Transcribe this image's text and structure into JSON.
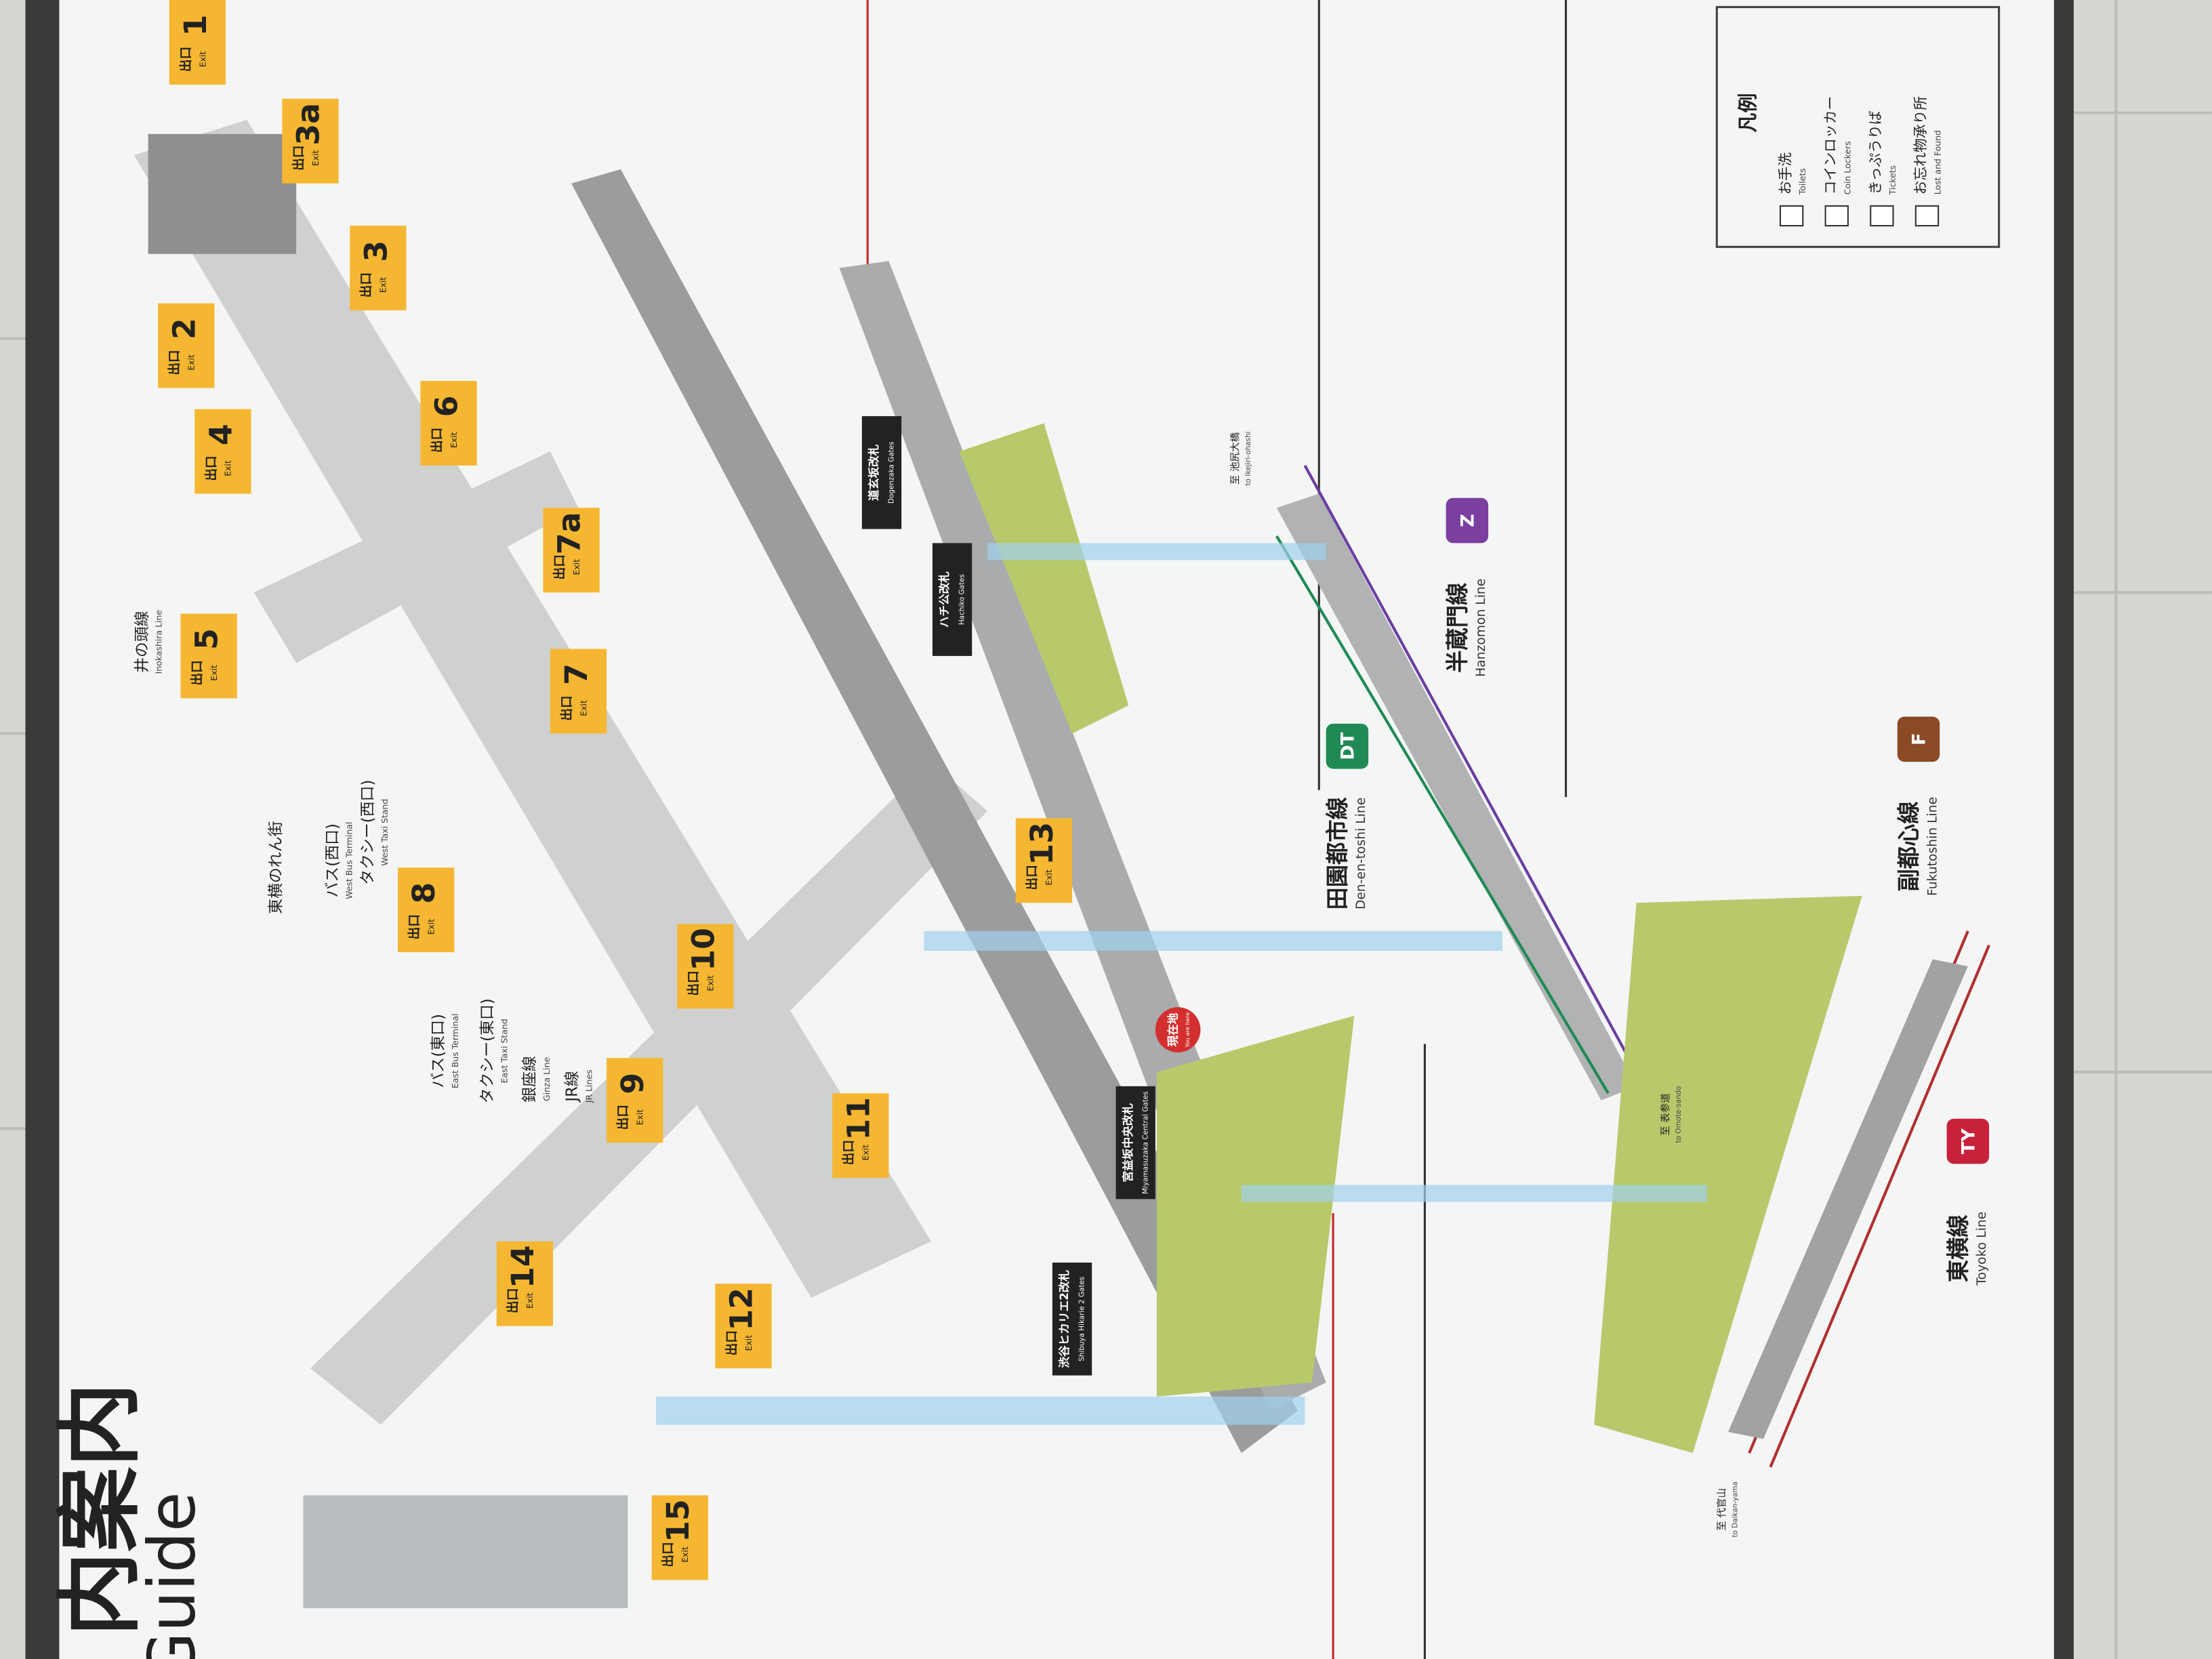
{
  "title": "内案内",
  "subtitle": "Guide",
  "exits": [
    {
      "label": "出口",
      "number": "1",
      "en": "Exit"
    },
    {
      "label": "出口",
      "number": "3a",
      "en": "Exit"
    },
    {
      "label": "出口",
      "number": "3",
      "en": "Exit"
    },
    {
      "label": "出口",
      "number": "2",
      "en": "Exit"
    },
    {
      "label": "出口",
      "number": "4",
      "en": "Exit"
    },
    {
      "label": "出口",
      "number": "6",
      "en": "Exit"
    },
    {
      "label": "出口",
      "number": "7a",
      "en": "Exit"
    },
    {
      "label": "出口",
      "number": "5",
      "en": "Exit"
    },
    {
      "label": "出口",
      "number": "7",
      "en": "Exit"
    },
    {
      "label": "出口",
      "number": "8",
      "en": "Exit"
    },
    {
      "label": "出口",
      "number": "13",
      "en": "Exit"
    },
    {
      "label": "出口",
      "number": "10",
      "en": "Exit"
    },
    {
      "label": "出口",
      "number": "9",
      "en": "Exit"
    },
    {
      "label": "出口",
      "number": "11",
      "en": "Exit"
    },
    {
      "label": "出口",
      "number": "14",
      "en": "Exit"
    },
    {
      "label": "出口",
      "number": "12",
      "en": "Exit"
    },
    {
      "label": "出口",
      "number": "15",
      "en": "Exit"
    }
  ],
  "lines": [
    {
      "code": "DT",
      "name": "田園都市線",
      "en": "Den-en-toshi Line"
    },
    {
      "code": "Z",
      "name": "半蔵門線",
      "en": "Hanzomon Line"
    },
    {
      "code": "F",
      "name": "副都心線",
      "en": "Fukutoshin Line"
    },
    {
      "code": "TY",
      "name": "東横線",
      "en": "Toyoko Line"
    }
  ],
  "gates": [
    {
      "name": "道玄坂改札",
      "en": "Dogenzaka Gates"
    },
    {
      "name": "ハチ公改札",
      "en": "Hachiko Gates"
    },
    {
      "name": "宮益坂中央改札",
      "en": "Miyamasuzaka Central Gates"
    },
    {
      "name": "渋谷ヒカリエ2改札",
      "en": "Shibuya Hikarie 2 Gates"
    }
  ],
  "you_are_here": {
    "name": "現在地",
    "en": "You are here"
  },
  "legend": {
    "title": "凡例",
    "items": [
      {
        "name": "お手洗",
        "en": "Toilets"
      },
      {
        "name": "コインロッカー",
        "en": "Coin Lockers"
      },
      {
        "name": "きっぷうりば",
        "en": "Tickets"
      },
      {
        "name": "お忘れ物承り所",
        "en": "Lost and Found"
      }
    ]
  },
  "places": [
    {
      "name": "東横のれん街"
    },
    {
      "name": "バス(西口)",
      "en": "West Bus Terminal"
    },
    {
      "name": "タクシー(西口)",
      "en": "West Taxi Stand"
    },
    {
      "name": "バス(東口)",
      "en": "East Bus Terminal"
    },
    {
      "name": "タクシー(東口)",
      "en": "East Taxi Stand"
    },
    {
      "name": "銀座線",
      "en": "Ginza Line"
    },
    {
      "name": "JR線",
      "en": "JR Lines"
    },
    {
      "name": "井の頭線",
      "en": "Inokashira Line"
    }
  ],
  "directions": [
    {
      "name": "至 池尻大橋",
      "en": "to Ikejiri-ohashi"
    },
    {
      "name": "至 表参道",
      "en": "to Omote-sando"
    },
    {
      "name": "至 代官山",
      "en": "to Daikan-yama"
    }
  ]
}
